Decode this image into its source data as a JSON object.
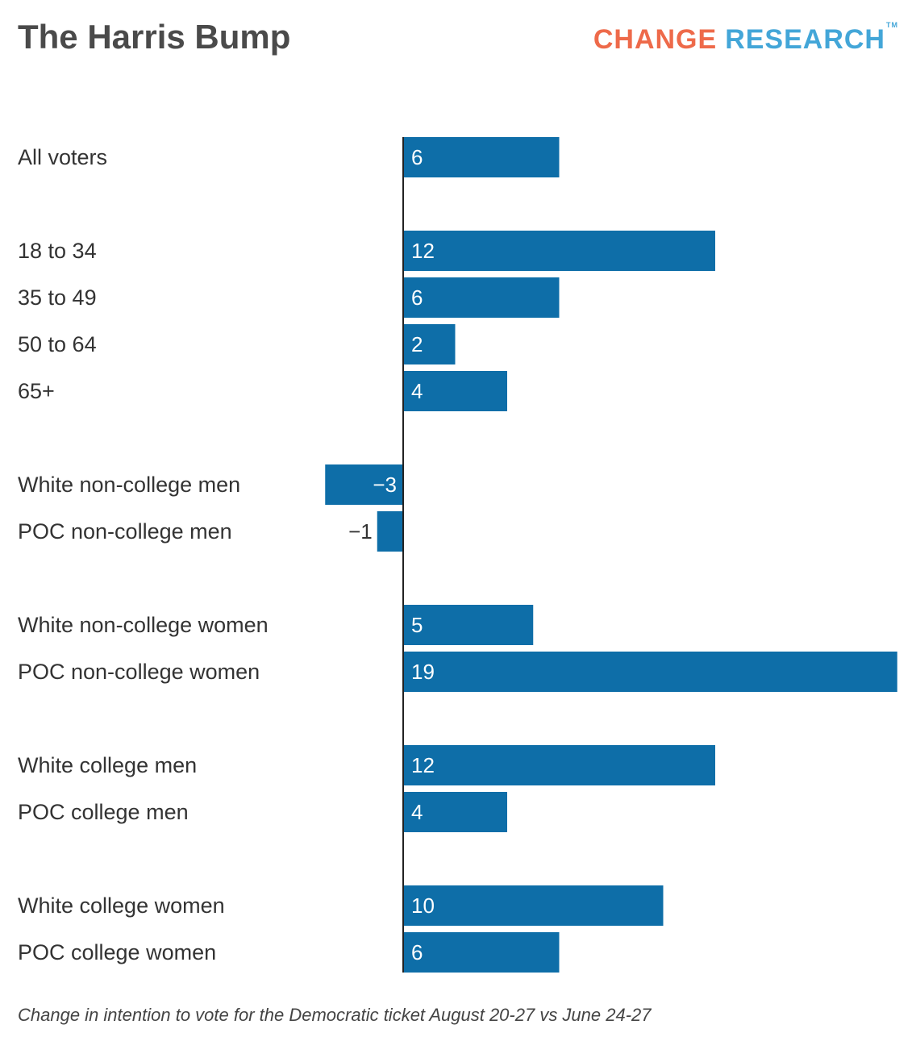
{
  "header": {
    "title": "The Harris Bump",
    "logo_word1": "CHANGE",
    "logo_word2": "RESEARCH",
    "logo_tm": "TM"
  },
  "caption": "Change in intention to vote for the Democratic ticket August 20-27 vs June 24-27",
  "colors": {
    "bar": "#0e6ea8",
    "axis": "#222222",
    "label_text": "#333333",
    "logo_orange": "#ee6a4a",
    "logo_blue": "#43a6d8"
  },
  "chart_data": {
    "type": "bar",
    "orientation": "horizontal",
    "title": "The Harris Bump",
    "xlabel": "",
    "ylabel": "",
    "grid": false,
    "legend": "none",
    "xlim": [
      -3,
      19
    ],
    "categories": [
      "All voters",
      "18 to 34",
      "35 to 49",
      "50 to 64",
      "65+",
      "White non-college men",
      "POC non-college men",
      "White non-college women",
      "POC non-college women",
      "White college men",
      "POC college men",
      "White college women",
      "POC college women"
    ],
    "values": [
      6,
      12,
      6,
      2,
      4,
      -3,
      -1,
      5,
      19,
      12,
      4,
      10,
      6
    ],
    "value_labels": [
      "6",
      "12",
      "6",
      "2",
      "4",
      "−3",
      "−1",
      "5",
      "19",
      "12",
      "4",
      "10",
      "6"
    ]
  }
}
